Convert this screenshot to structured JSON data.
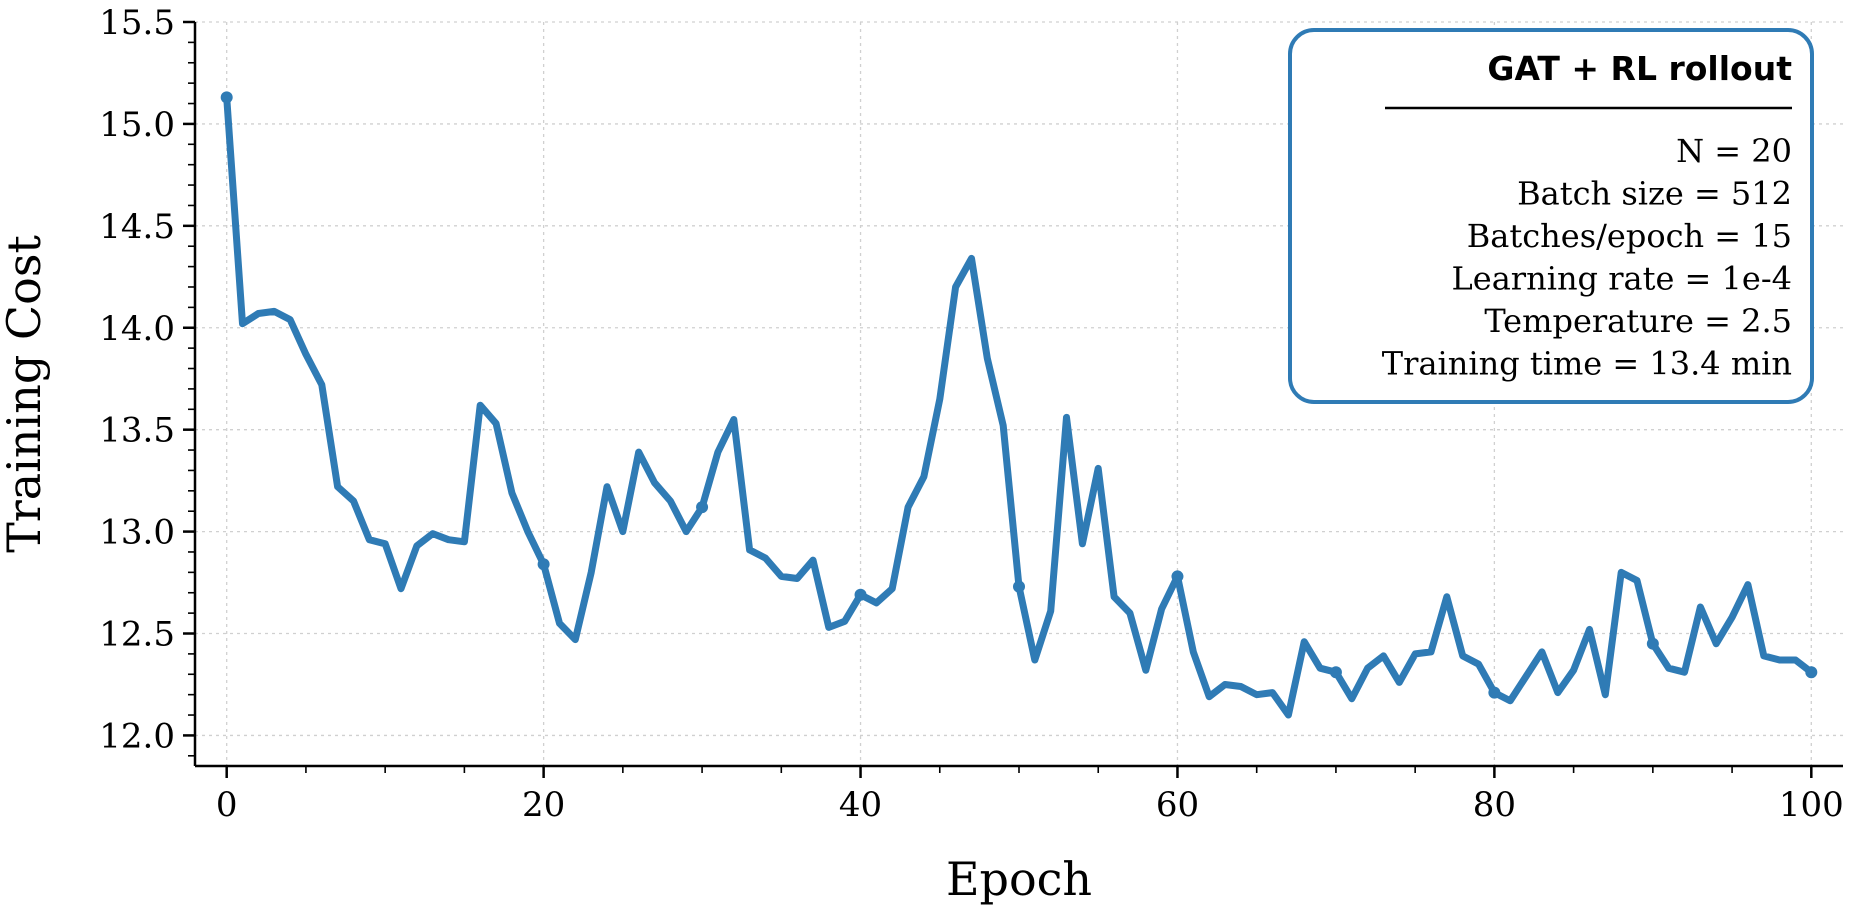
{
  "chart_data": {
    "type": "line",
    "title": "",
    "xlabel": "Epoch",
    "ylabel": "Training Cost",
    "xlim": [
      -2,
      102
    ],
    "ylim": [
      11.85,
      15.5
    ],
    "x_ticks": [
      0,
      20,
      40,
      60,
      80,
      100
    ],
    "y_ticks": [
      12.0,
      12.5,
      13.0,
      13.5,
      14.0,
      14.5,
      15.0,
      15.5
    ],
    "grid": true,
    "legend_position": "top-right",
    "series": [
      {
        "color": "#2f7bb5",
        "markers_at": [
          0,
          20,
          30,
          40,
          50,
          60,
          70,
          80,
          90,
          100
        ],
        "x": [
          0,
          1,
          2,
          3,
          4,
          5,
          6,
          7,
          8,
          9,
          10,
          11,
          12,
          13,
          14,
          15,
          16,
          17,
          18,
          19,
          20,
          21,
          22,
          23,
          24,
          25,
          26,
          27,
          28,
          29,
          30,
          31,
          32,
          33,
          34,
          35,
          36,
          37,
          38,
          39,
          40,
          41,
          42,
          43,
          44,
          45,
          46,
          47,
          48,
          49,
          50,
          51,
          52,
          53,
          54,
          55,
          56,
          57,
          58,
          59,
          60,
          61,
          62,
          63,
          64,
          65,
          66,
          67,
          68,
          69,
          70,
          71,
          72,
          73,
          74,
          75,
          76,
          77,
          78,
          79,
          80,
          81,
          82,
          83,
          84,
          85,
          86,
          87,
          88,
          89,
          90,
          91,
          92,
          93,
          94,
          95,
          96,
          97,
          98,
          99,
          100
        ],
        "values": [
          15.13,
          14.02,
          14.07,
          14.08,
          14.04,
          13.87,
          13.72,
          13.22,
          13.15,
          12.96,
          12.94,
          12.72,
          12.93,
          12.99,
          12.96,
          12.95,
          13.62,
          13.53,
          13.19,
          13.0,
          12.84,
          12.55,
          12.47,
          12.8,
          13.22,
          13.0,
          13.39,
          13.24,
          13.15,
          13.0,
          13.12,
          13.39,
          13.55,
          12.91,
          12.87,
          12.78,
          12.77,
          12.86,
          12.53,
          12.56,
          12.69,
          12.65,
          12.72,
          13.12,
          13.27,
          13.65,
          14.2,
          14.34,
          13.85,
          13.52,
          12.73,
          12.37,
          12.61,
          13.56,
          12.94,
          13.31,
          12.68,
          12.6,
          12.32,
          12.62,
          12.78,
          12.41,
          12.19,
          12.25,
          12.24,
          12.2,
          12.21,
          12.1,
          12.46,
          12.33,
          12.31,
          12.18,
          12.33,
          12.39,
          12.26,
          12.4,
          12.41,
          12.68,
          12.39,
          12.35,
          12.21,
          12.17,
          12.29,
          12.41,
          12.21,
          12.32,
          12.52,
          12.2,
          12.8,
          12.76,
          12.45,
          12.33,
          12.31,
          12.63,
          12.45,
          12.58,
          12.74,
          12.39,
          12.37,
          12.37,
          12.31
        ]
      }
    ]
  },
  "legend": {
    "title": "GAT + RL rollout",
    "lines": [
      "N = 20",
      "Batch size = 512",
      "Batches/epoch = 15",
      "Learning rate = 1e-4",
      "Temperature = 2.5",
      "Training time = 13.4 min"
    ],
    "border_color": "#2f7bb5"
  }
}
